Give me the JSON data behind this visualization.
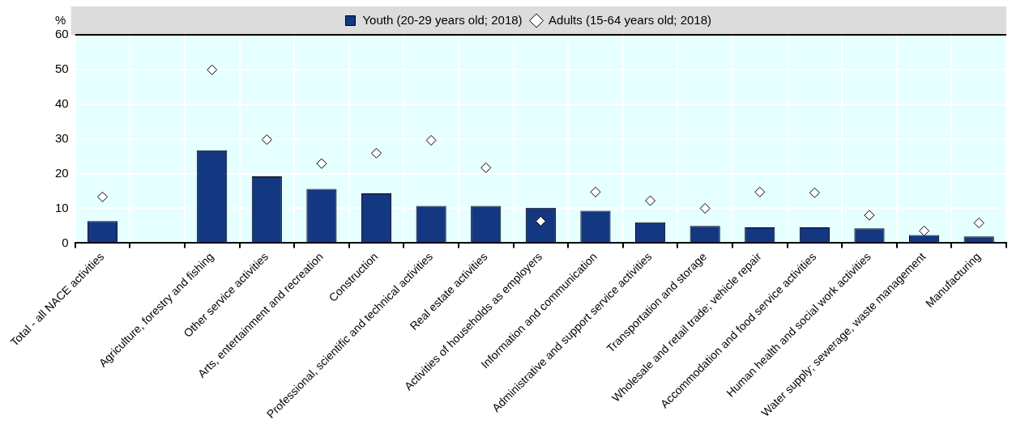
{
  "chart_data": {
    "type": "bar",
    "ylabel": "%",
    "categories": [
      "Total - all NACE activities",
      null,
      "Agriculture, forestry and fishing",
      "Other service activities",
      "Arts, entertainment and recreation",
      "Construction",
      "Professional, scientific and technical activities",
      "Real estate activities",
      "Activities of households as employers",
      "Information and communication",
      "Administrative and support service activities",
      "Transportation and storage",
      "Wholesale and retail trade; vehicle repair",
      "Accommodation and food service activities",
      "Human health and social work activities",
      "Water supply; sewerage, waste management",
      "Manufacturing"
    ],
    "series": [
      {
        "name": "Youth (20-29 years old; 2018)",
        "type": "bar",
        "color": "#143782",
        "values": [
          6.3,
          null,
          26.7,
          19.2,
          15.6,
          14.3,
          10.7,
          10.7,
          10.2,
          9.3,
          6.0,
          4.9,
          4.5,
          4.5,
          4.2,
          2.3,
          1.9
        ]
      },
      {
        "name": "Adults (15-64 years old; 2018)",
        "type": "scatter",
        "marker": "diamond",
        "color": "#ffffff",
        "x": [
          "Total - all NACE activities",
          null,
          "Agriculture, forestry and fishing",
          "Other service activities",
          "Arts, entertainment and recreation",
          "Construction",
          "Professional, scientific and technical activities",
          "Real estate activities",
          "Activities of households as employers",
          "Information and communication",
          "Administrative and support service activities",
          "Transportation and storage",
          "Wholesale and retail trade; vehicle repair",
          "Accommodation and food service activities",
          "Human health and social work activities",
          "Water supply; sewerage, waste management",
          "Manufacturing"
        ],
        "values": [
          13.3,
          null,
          49.9,
          29.8,
          22.9,
          25.9,
          29.6,
          21.7,
          6.3,
          14.7,
          12.2,
          10.0,
          14.7,
          14.5,
          8.0,
          3.5,
          5.8
        ]
      }
    ],
    "ylim": [
      0,
      60
    ],
    "yticks": [
      0,
      10,
      20,
      30,
      40,
      50,
      60
    ],
    "grid": true,
    "legend": "top"
  }
}
